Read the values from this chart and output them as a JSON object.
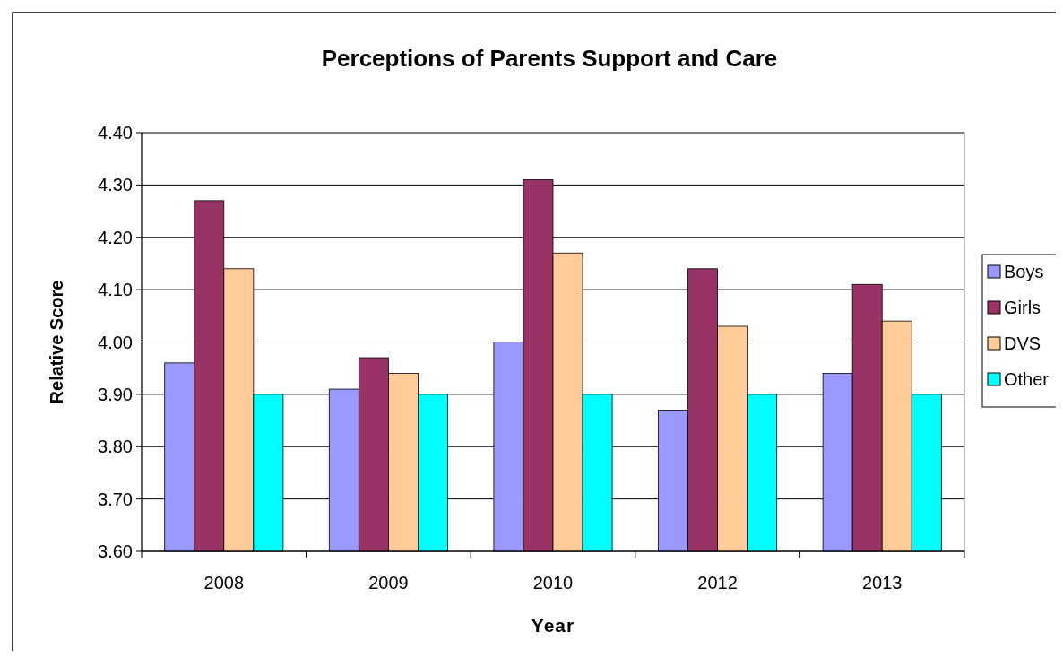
{
  "chart_data": {
    "type": "bar",
    "title": "Perceptions of Parents Support and Care",
    "xlabel": "Year",
    "ylabel": "Relative Score",
    "categories": [
      "2008",
      "2009",
      "2010",
      "2012",
      "2013"
    ],
    "series": [
      {
        "name": "Boys",
        "color": "#9999ff",
        "values": [
          3.96,
          3.91,
          4.0,
          3.87,
          3.94
        ]
      },
      {
        "name": "Girls",
        "color": "#993366",
        "values": [
          4.27,
          3.97,
          4.31,
          4.14,
          4.11
        ]
      },
      {
        "name": "DVS",
        "color": "#ffcc99",
        "values": [
          4.14,
          3.94,
          4.17,
          4.03,
          4.04
        ]
      },
      {
        "name": "Other",
        "color": "#00ffff",
        "values": [
          3.9,
          3.9,
          3.9,
          3.9,
          3.9
        ]
      }
    ],
    "ylim": [
      3.6,
      4.4
    ],
    "yticks": [
      {
        "value": 3.6,
        "label": "3.60"
      },
      {
        "value": 3.7,
        "label": "3.70"
      },
      {
        "value": 3.8,
        "label": "3.80"
      },
      {
        "value": 3.9,
        "label": "3.90"
      },
      {
        "value": 4.0,
        "label": "4.00"
      },
      {
        "value": 4.1,
        "label": "4.10"
      },
      {
        "value": 4.2,
        "label": "4.20"
      },
      {
        "value": 4.3,
        "label": "4.30"
      },
      {
        "value": 4.4,
        "label": "4.40"
      }
    ],
    "grid": "y",
    "legend": "right"
  }
}
